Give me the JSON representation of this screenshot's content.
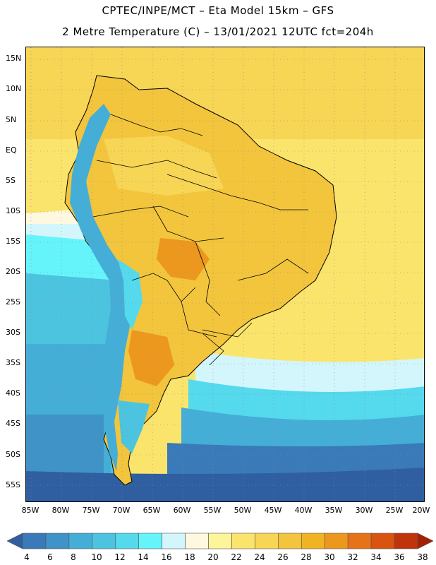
{
  "header": {
    "title_line1": "CPTEC/INPE/MCT –  Eta Model 15km – GFS",
    "title_line2": "2 Metre Temperature (C) – 13/01/2021 12UTC fct=204h"
  },
  "map": {
    "lat_labels": [
      "15N",
      "10N",
      "5N",
      "EQ",
      "5S",
      "10S",
      "15S",
      "20S",
      "25S",
      "30S",
      "35S",
      "40S",
      "45S",
      "50S",
      "55S"
    ],
    "lon_labels": [
      "85W",
      "80W",
      "75W",
      "70W",
      "65W",
      "60W",
      "55W",
      "50W",
      "45W",
      "40W",
      "35W",
      "30W",
      "25W",
      "20W"
    ]
  },
  "colorbar": {
    "labels": [
      "4",
      "6",
      "8",
      "10",
      "12",
      "14",
      "16",
      "18",
      "20",
      "22",
      "24",
      "26",
      "28",
      "30",
      "32",
      "34",
      "36",
      "38"
    ],
    "colors": [
      "#2f5fa0",
      "#3a7ab8",
      "#3f93c6",
      "#45aed6",
      "#4cc4e0",
      "#55d9ec",
      "#66f4fb",
      "#d2f6fc",
      "#fff8e0",
      "#fef59a",
      "#fbe46c",
      "#f7d555",
      "#f2c53d",
      "#f0b322",
      "#ec981f",
      "#e77318",
      "#d95410",
      "#c0340b",
      "#a51f07"
    ]
  },
  "colors": {
    "ocean_south_deep": "#2f5fa0",
    "ocean_mid": "#3f93c6",
    "ocean_cool": "#4cc4e0",
    "ocean_light": "#d2f6fc",
    "ocean_warm": "#fbe46c",
    "land_warm": "#f2c53d",
    "land_hot": "#ec981f",
    "andes_cold": "#45aed6"
  }
}
